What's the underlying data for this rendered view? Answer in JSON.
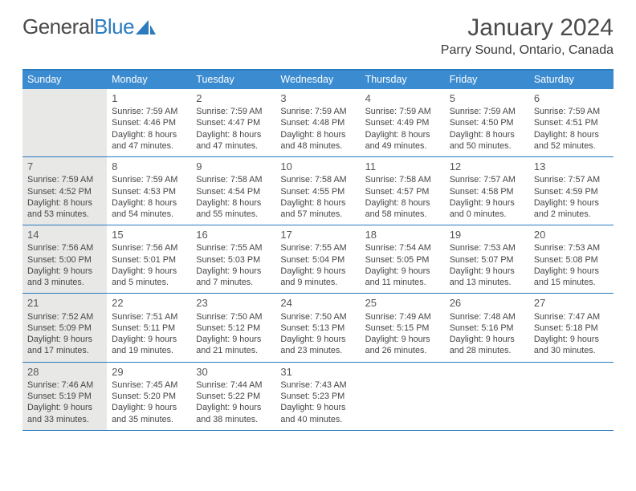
{
  "brand": {
    "part1": "General",
    "part2": "Blue"
  },
  "title": "January 2024",
  "location": "Parry Sound, Ontario, Canada",
  "colors": {
    "header_bar": "#3b8bd0",
    "rule": "#2b7bbf",
    "shade": "#e8e8e7",
    "text": "#454545",
    "title_text": "#4a4a4a"
  },
  "day_headers": [
    "Sunday",
    "Monday",
    "Tuesday",
    "Wednesday",
    "Thursday",
    "Friday",
    "Saturday"
  ],
  "weeks": [
    [
      {
        "blank": true,
        "shade": true
      },
      {
        "n": "1",
        "sr": "7:59 AM",
        "ss": "4:46 PM",
        "dl": "8 hours and 47 minutes."
      },
      {
        "n": "2",
        "sr": "7:59 AM",
        "ss": "4:47 PM",
        "dl": "8 hours and 47 minutes."
      },
      {
        "n": "3",
        "sr": "7:59 AM",
        "ss": "4:48 PM",
        "dl": "8 hours and 48 minutes."
      },
      {
        "n": "4",
        "sr": "7:59 AM",
        "ss": "4:49 PM",
        "dl": "8 hours and 49 minutes."
      },
      {
        "n": "5",
        "sr": "7:59 AM",
        "ss": "4:50 PM",
        "dl": "8 hours and 50 minutes."
      },
      {
        "n": "6",
        "sr": "7:59 AM",
        "ss": "4:51 PM",
        "dl": "8 hours and 52 minutes."
      }
    ],
    [
      {
        "n": "7",
        "shade": true,
        "sr": "7:59 AM",
        "ss": "4:52 PM",
        "dl": "8 hours and 53 minutes."
      },
      {
        "n": "8",
        "sr": "7:59 AM",
        "ss": "4:53 PM",
        "dl": "8 hours and 54 minutes."
      },
      {
        "n": "9",
        "sr": "7:58 AM",
        "ss": "4:54 PM",
        "dl": "8 hours and 55 minutes."
      },
      {
        "n": "10",
        "sr": "7:58 AM",
        "ss": "4:55 PM",
        "dl": "8 hours and 57 minutes."
      },
      {
        "n": "11",
        "sr": "7:58 AM",
        "ss": "4:57 PM",
        "dl": "8 hours and 58 minutes."
      },
      {
        "n": "12",
        "sr": "7:57 AM",
        "ss": "4:58 PM",
        "dl": "9 hours and 0 minutes."
      },
      {
        "n": "13",
        "sr": "7:57 AM",
        "ss": "4:59 PM",
        "dl": "9 hours and 2 minutes."
      }
    ],
    [
      {
        "n": "14",
        "shade": true,
        "sr": "7:56 AM",
        "ss": "5:00 PM",
        "dl": "9 hours and 3 minutes."
      },
      {
        "n": "15",
        "sr": "7:56 AM",
        "ss": "5:01 PM",
        "dl": "9 hours and 5 minutes."
      },
      {
        "n": "16",
        "sr": "7:55 AM",
        "ss": "5:03 PM",
        "dl": "9 hours and 7 minutes."
      },
      {
        "n": "17",
        "sr": "7:55 AM",
        "ss": "5:04 PM",
        "dl": "9 hours and 9 minutes."
      },
      {
        "n": "18",
        "sr": "7:54 AM",
        "ss": "5:05 PM",
        "dl": "9 hours and 11 minutes."
      },
      {
        "n": "19",
        "sr": "7:53 AM",
        "ss": "5:07 PM",
        "dl": "9 hours and 13 minutes."
      },
      {
        "n": "20",
        "sr": "7:53 AM",
        "ss": "5:08 PM",
        "dl": "9 hours and 15 minutes."
      }
    ],
    [
      {
        "n": "21",
        "shade": true,
        "sr": "7:52 AM",
        "ss": "5:09 PM",
        "dl": "9 hours and 17 minutes."
      },
      {
        "n": "22",
        "sr": "7:51 AM",
        "ss": "5:11 PM",
        "dl": "9 hours and 19 minutes."
      },
      {
        "n": "23",
        "sr": "7:50 AM",
        "ss": "5:12 PM",
        "dl": "9 hours and 21 minutes."
      },
      {
        "n": "24",
        "sr": "7:50 AM",
        "ss": "5:13 PM",
        "dl": "9 hours and 23 minutes."
      },
      {
        "n": "25",
        "sr": "7:49 AM",
        "ss": "5:15 PM",
        "dl": "9 hours and 26 minutes."
      },
      {
        "n": "26",
        "sr": "7:48 AM",
        "ss": "5:16 PM",
        "dl": "9 hours and 28 minutes."
      },
      {
        "n": "27",
        "sr": "7:47 AM",
        "ss": "5:18 PM",
        "dl": "9 hours and 30 minutes."
      }
    ],
    [
      {
        "n": "28",
        "shade": true,
        "sr": "7:46 AM",
        "ss": "5:19 PM",
        "dl": "9 hours and 33 minutes."
      },
      {
        "n": "29",
        "sr": "7:45 AM",
        "ss": "5:20 PM",
        "dl": "9 hours and 35 minutes."
      },
      {
        "n": "30",
        "sr": "7:44 AM",
        "ss": "5:22 PM",
        "dl": "9 hours and 38 minutes."
      },
      {
        "n": "31",
        "sr": "7:43 AM",
        "ss": "5:23 PM",
        "dl": "9 hours and 40 minutes."
      },
      {
        "blank": true
      },
      {
        "blank": true
      },
      {
        "blank": true
      }
    ]
  ],
  "labels": {
    "sunrise": "Sunrise: ",
    "sunset": "Sunset: ",
    "daylight": "Daylight: "
  }
}
